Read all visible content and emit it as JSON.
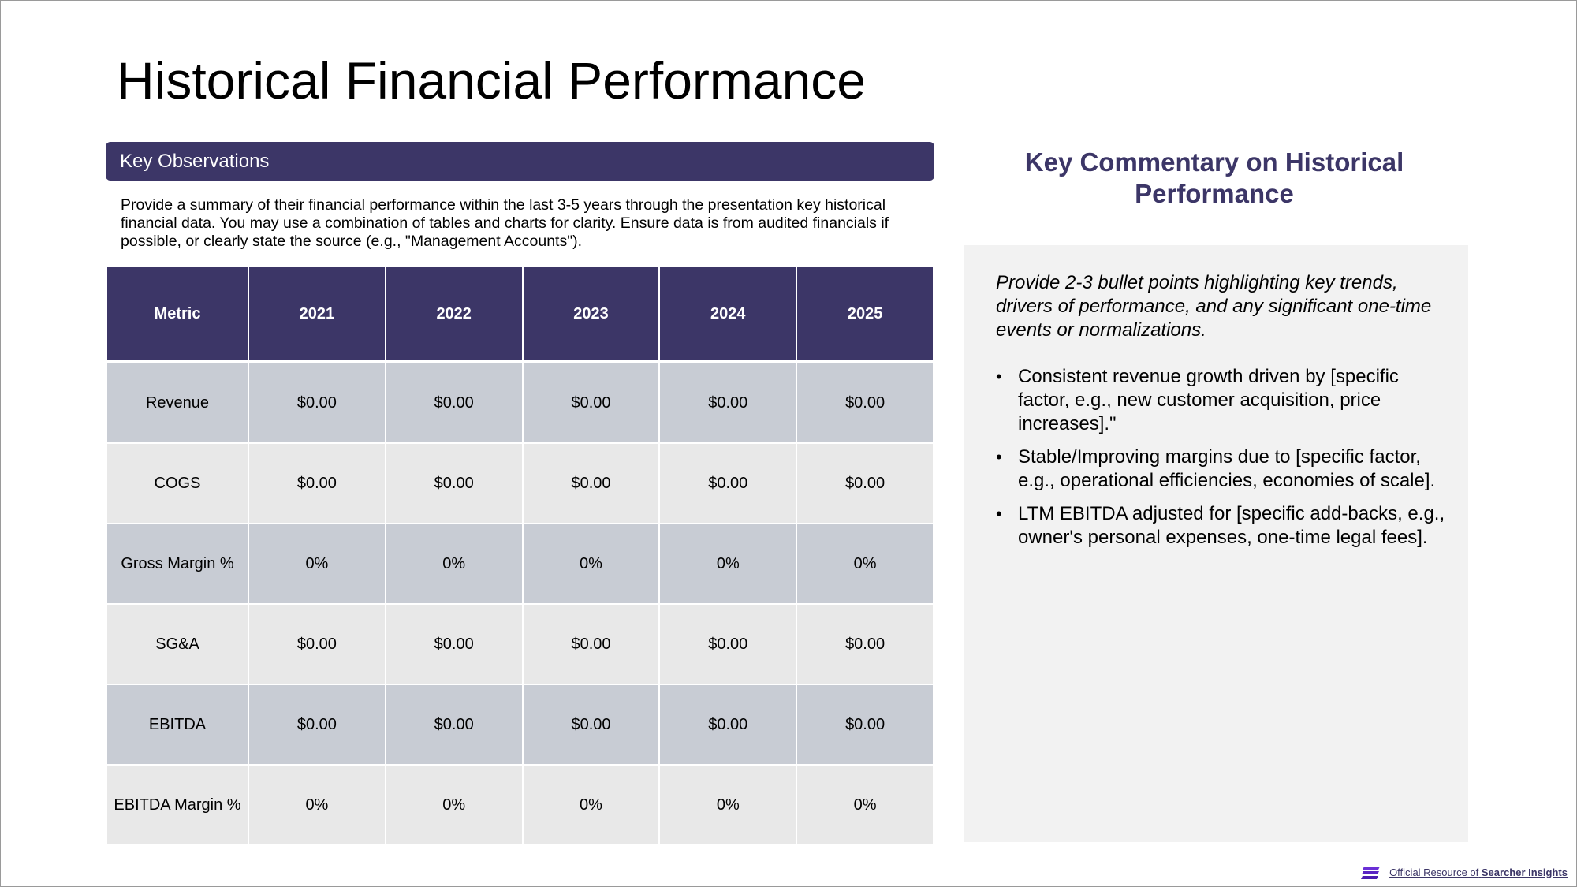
{
  "title": "Historical Financial Performance",
  "observations": {
    "header": "Key Observations",
    "text": "Provide a summary of their financial performance within the last 3-5 years through the presentation key historical financial data. You may use a combination of tables and charts for clarity. Ensure data is from audited financials if possible, or clearly state the source (e.g., \"Management Accounts\")."
  },
  "table": {
    "headers": [
      "Metric",
      "2021",
      "2022",
      "2023",
      "2024",
      "2025"
    ],
    "rows": [
      [
        "Revenue",
        "$0.00",
        "$0.00",
        "$0.00",
        "$0.00",
        "$0.00"
      ],
      [
        "COGS",
        "$0.00",
        "$0.00",
        "$0.00",
        "$0.00",
        "$0.00"
      ],
      [
        "Gross Margin %",
        "0%",
        "0%",
        "0%",
        "0%",
        "0%"
      ],
      [
        "SG&A",
        "$0.00",
        "$0.00",
        "$0.00",
        "$0.00",
        "$0.00"
      ],
      [
        "EBITDA",
        "$0.00",
        "$0.00",
        "$0.00",
        "$0.00",
        "$0.00"
      ],
      [
        "EBITDA Margin %",
        "0%",
        "0%",
        "0%",
        "0%",
        "0%"
      ]
    ]
  },
  "commentary": {
    "title": "Key Commentary on Historical Performance",
    "intro": "Provide 2-3 bullet points highlighting key trends, drivers of performance, and any significant one-time events or normalizations.",
    "bullets": [
      "Consistent revenue growth driven by [specific factor, e.g., new customer acquisition, price increases].\"",
      "Stable/Improving margins due to [specific factor, e.g., operational efficiencies, economies of scale].",
      "LTM EBITDA adjusted for [specific add-backs, e.g., owner's personal expenses, one-time legal fees]."
    ]
  },
  "footer": {
    "prefix": "Official Resource of",
    "brand": "Searcher Insights",
    "logo_icon": "searcher-logo-icon"
  },
  "colors": {
    "accent": "#3c3667",
    "row_dark": "#c8ccd4",
    "row_light": "#e8e8e8",
    "panel": "#f2f2f2"
  }
}
